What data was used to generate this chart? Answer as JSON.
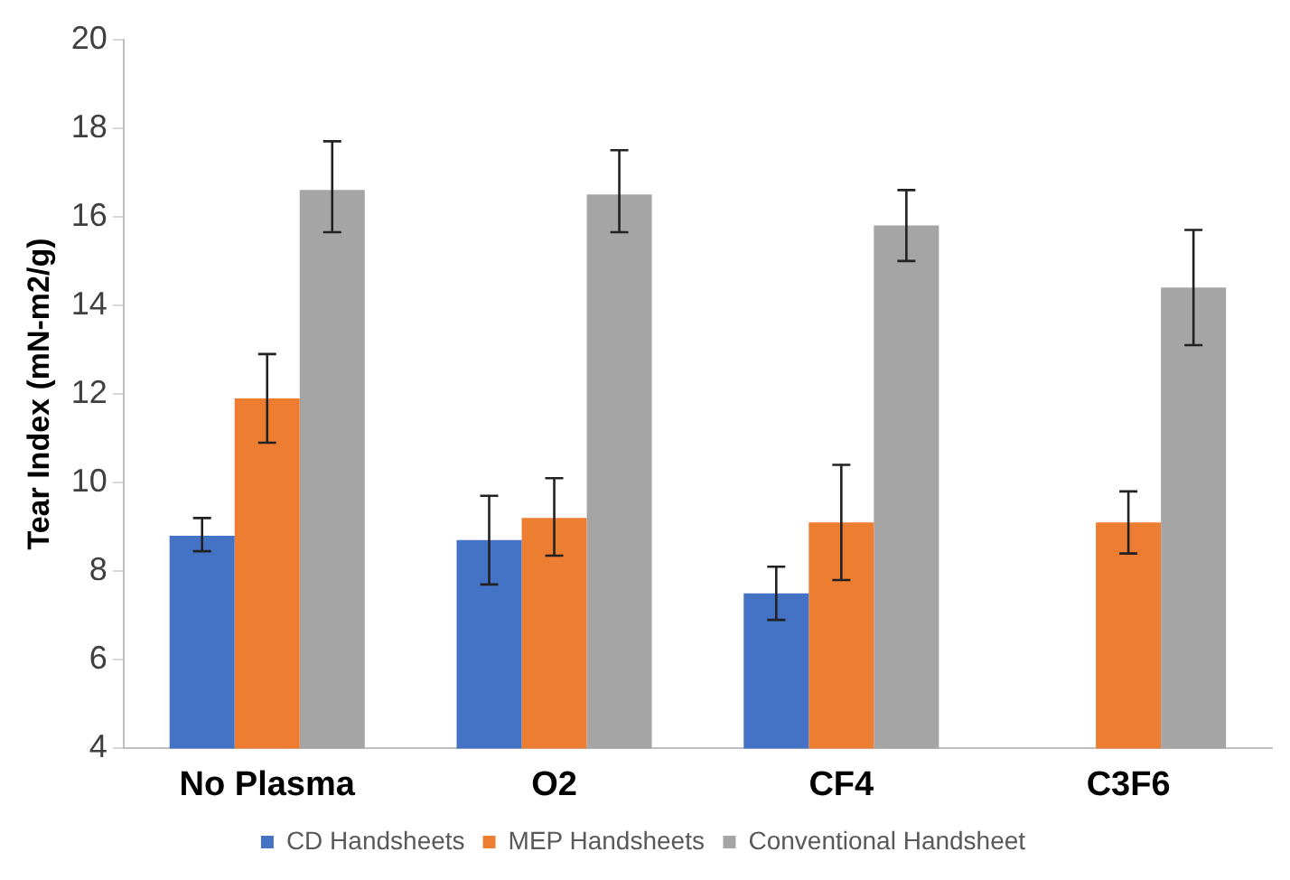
{
  "chart_data": {
    "type": "bar",
    "ylabel": "Tear Index (mN-m2/g)",
    "categories": [
      "No Plasma",
      "O2",
      "CF4",
      "C3F6"
    ],
    "series": [
      {
        "name": "CD Handsheets",
        "color": "#4472c4",
        "values": [
          8.8,
          8.7,
          7.5,
          null
        ],
        "errors": [
          [
            8.45,
            9.2
          ],
          [
            7.7,
            9.7
          ],
          [
            6.9,
            8.1
          ],
          null
        ]
      },
      {
        "name": "MEP Handsheets",
        "color": "#ed7d31",
        "values": [
          11.9,
          9.2,
          9.1,
          9.1
        ],
        "errors": [
          [
            10.9,
            12.9
          ],
          [
            8.35,
            10.1
          ],
          [
            7.8,
            10.4
          ],
          [
            8.4,
            9.8
          ]
        ]
      },
      {
        "name": "Conventional Handsheet",
        "color": "#a5a5a5",
        "values": [
          16.6,
          16.5,
          15.8,
          14.4
        ],
        "errors": [
          [
            15.65,
            17.7
          ],
          [
            15.65,
            17.5
          ],
          [
            15.0,
            16.6
          ],
          [
            13.1,
            15.7
          ]
        ]
      }
    ],
    "ylim": [
      4,
      20
    ],
    "yticks": [
      4,
      6,
      8,
      10,
      12,
      14,
      16,
      18,
      20
    ],
    "grid": false,
    "legend": "bottom"
  }
}
